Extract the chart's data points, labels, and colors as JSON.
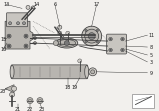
{
  "bg_color": "#f2f0ed",
  "line_color": "#404040",
  "dark_color": "#2a2a2a",
  "part_fill": "#d0cdc8",
  "part_fill2": "#b8b5b0",
  "part_fill3": "#c8c5c0",
  "white": "#ffffff",
  "gray_light": "#e8e6e2",
  "callout_color": "#222222",
  "legend_bg": "#ffffff"
}
